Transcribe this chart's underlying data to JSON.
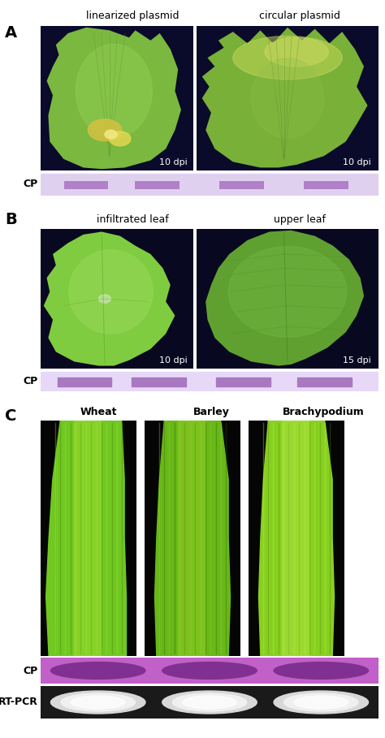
{
  "fig_width": 4.74,
  "fig_height": 9.09,
  "fig_dpi": 100,
  "background_color": "#ffffff",
  "panel_A": {
    "label": "A",
    "col1_title": "linearized plasmid",
    "col2_title": "circular plasmid",
    "dpi_label": "10 dpi",
    "cp_label": "CP"
  },
  "panel_B": {
    "label": "B",
    "col1_title": "infiltrated leaf",
    "col2_title": "upper leaf",
    "dpi1_label": "10 dpi",
    "dpi2_label": "15 dpi",
    "cp_label": "CP"
  },
  "panel_C": {
    "label": "C",
    "col1_title": "Wheat",
    "col2_title": "Barley",
    "col3_title": "Brachypodium",
    "cp_label": "CP",
    "rtpcr_label": "RT-PCR"
  },
  "label_fontsize": 14,
  "title_fontsize": 9,
  "cp_fontsize": 9,
  "dpi_fontsize": 8
}
